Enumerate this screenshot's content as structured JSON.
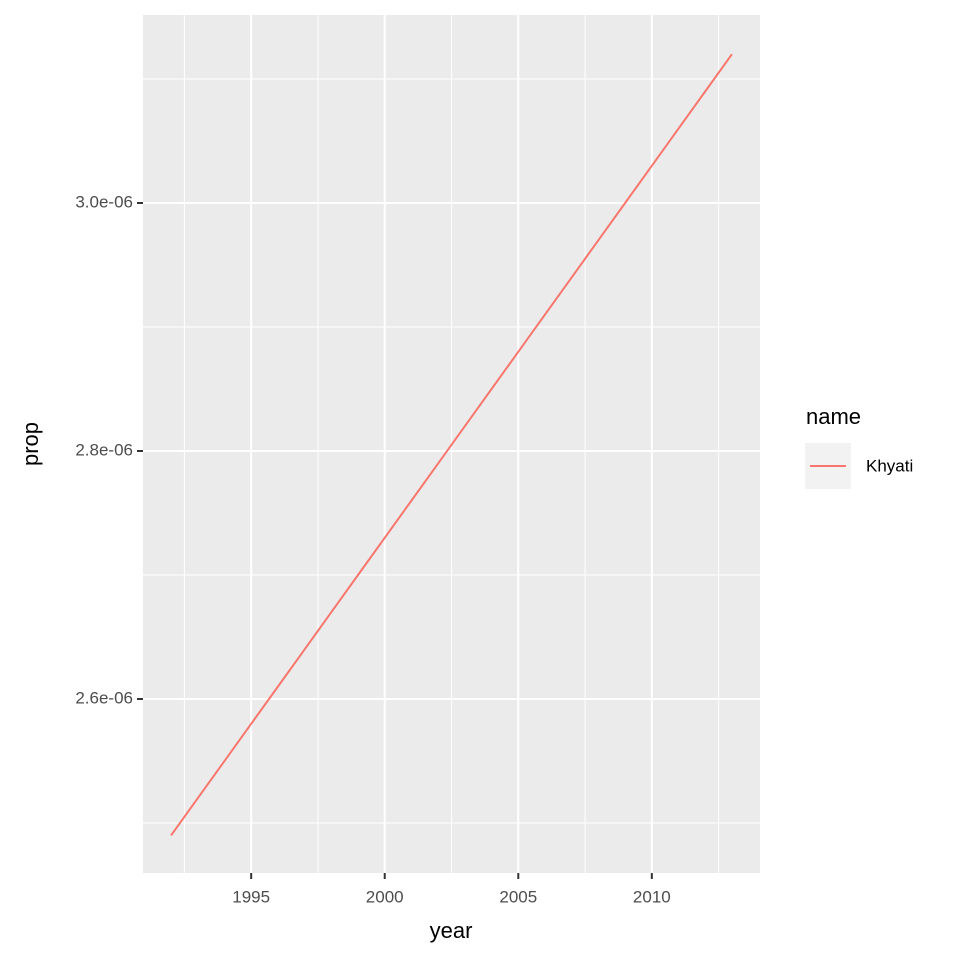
{
  "chart_data": {
    "type": "line",
    "x_label": "year",
    "y_label": "prop",
    "x": [
      1992,
      1993,
      1994,
      1995,
      1996,
      1997,
      1998,
      1999,
      2000,
      2001,
      2002,
      2003,
      2004,
      2005,
      2006,
      2007,
      2008,
      2009,
      2010,
      2011,
      2012,
      2013
    ],
    "series": [
      {
        "name": "Khyati",
        "color": "#F8766D",
        "values": [
          2.49e-06,
          2.52e-06,
          2.55e-06,
          2.58e-06,
          2.61e-06,
          2.64e-06,
          2.67e-06,
          2.7e-06,
          2.73e-06,
          2.76e-06,
          2.79e-06,
          2.82e-06,
          2.85e-06,
          2.88e-06,
          2.91e-06,
          2.94e-06,
          2.97e-06,
          3e-06,
          3.03e-06,
          3.06e-06,
          3.09e-06,
          3.12e-06
        ]
      }
    ],
    "xlim": [
      1990.95,
      2014.05
    ],
    "xticks": [
      1995,
      2000,
      2005,
      2010
    ],
    "xminor": [
      1992.5,
      1997.5,
      2002.5,
      2007.5,
      2012.5
    ],
    "ylim": [
      2.4597e-06,
      3.1516e-06
    ],
    "yticks": [
      {
        "value": 2.6e-06,
        "label": "2.6e-06"
      },
      {
        "value": 2.8e-06,
        "label": "2.8e-06"
      },
      {
        "value": 3e-06,
        "label": "3.0e-06"
      }
    ],
    "yminor": [
      2.5e-06,
      2.7e-06,
      2.9e-06,
      3.1e-06
    ],
    "grid": true,
    "legend_title": "name",
    "legend_position": "right"
  }
}
